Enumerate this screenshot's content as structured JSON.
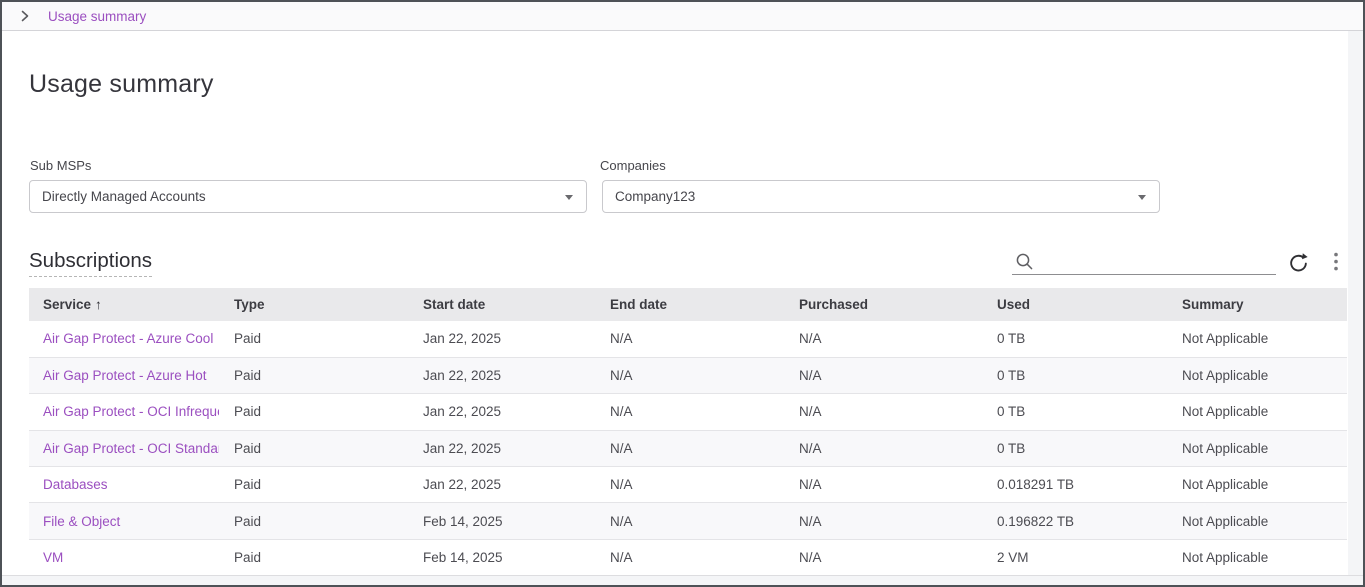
{
  "breadcrumb": {
    "current": "Usage summary"
  },
  "page": {
    "title": "Usage summary"
  },
  "filters": {
    "sub_msps": {
      "label": "Sub MSPs",
      "value": "Directly Managed Accounts"
    },
    "companies": {
      "label": "Companies",
      "value": "Company123"
    }
  },
  "subscriptions": {
    "title": "Subscriptions",
    "search": {
      "value": "",
      "placeholder": ""
    },
    "sort": {
      "column": "Service",
      "direction": "ascending",
      "indicator": "↑"
    },
    "columns": [
      "Service",
      "Type",
      "Start date",
      "End date",
      "Purchased",
      "Used",
      "Summary"
    ],
    "rows": [
      {
        "service": "Air Gap Protect - Azure Cool",
        "type": "Paid",
        "start_date": "Jan 22, 2025",
        "end_date": "N/A",
        "purchased": "N/A",
        "used": "0 TB",
        "summary": "Not Applicable"
      },
      {
        "service": "Air Gap Protect - Azure Hot",
        "type": "Paid",
        "start_date": "Jan 22, 2025",
        "end_date": "N/A",
        "purchased": "N/A",
        "used": "0 TB",
        "summary": "Not Applicable"
      },
      {
        "service": "Air Gap Protect - OCI Infrequent Access",
        "type": "Paid",
        "start_date": "Jan 22, 2025",
        "end_date": "N/A",
        "purchased": "N/A",
        "used": "0 TB",
        "summary": "Not Applicable"
      },
      {
        "service": "Air Gap Protect - OCI Standard",
        "type": "Paid",
        "start_date": "Jan 22, 2025",
        "end_date": "N/A",
        "purchased": "N/A",
        "used": "0 TB",
        "summary": "Not Applicable"
      },
      {
        "service": "Databases",
        "type": "Paid",
        "start_date": "Jan 22, 2025",
        "end_date": "N/A",
        "purchased": "N/A",
        "used": "0.018291 TB",
        "summary": "Not Applicable"
      },
      {
        "service": "File & Object",
        "type": "Paid",
        "start_date": "Feb 14, 2025",
        "end_date": "N/A",
        "purchased": "N/A",
        "used": "0.196822 TB",
        "summary": "Not Applicable"
      },
      {
        "service": "VM",
        "type": "Paid",
        "start_date": "Feb 14, 2025",
        "end_date": "N/A",
        "purchased": "N/A",
        "used": "2 VM",
        "summary": "Not Applicable"
      }
    ]
  },
  "colors": {
    "accent_purple": "#9b4fc0",
    "table_header_bg": "#e9e9eb",
    "row_alt_bg": "#f8f8fa",
    "window_border": "#4e5257"
  }
}
